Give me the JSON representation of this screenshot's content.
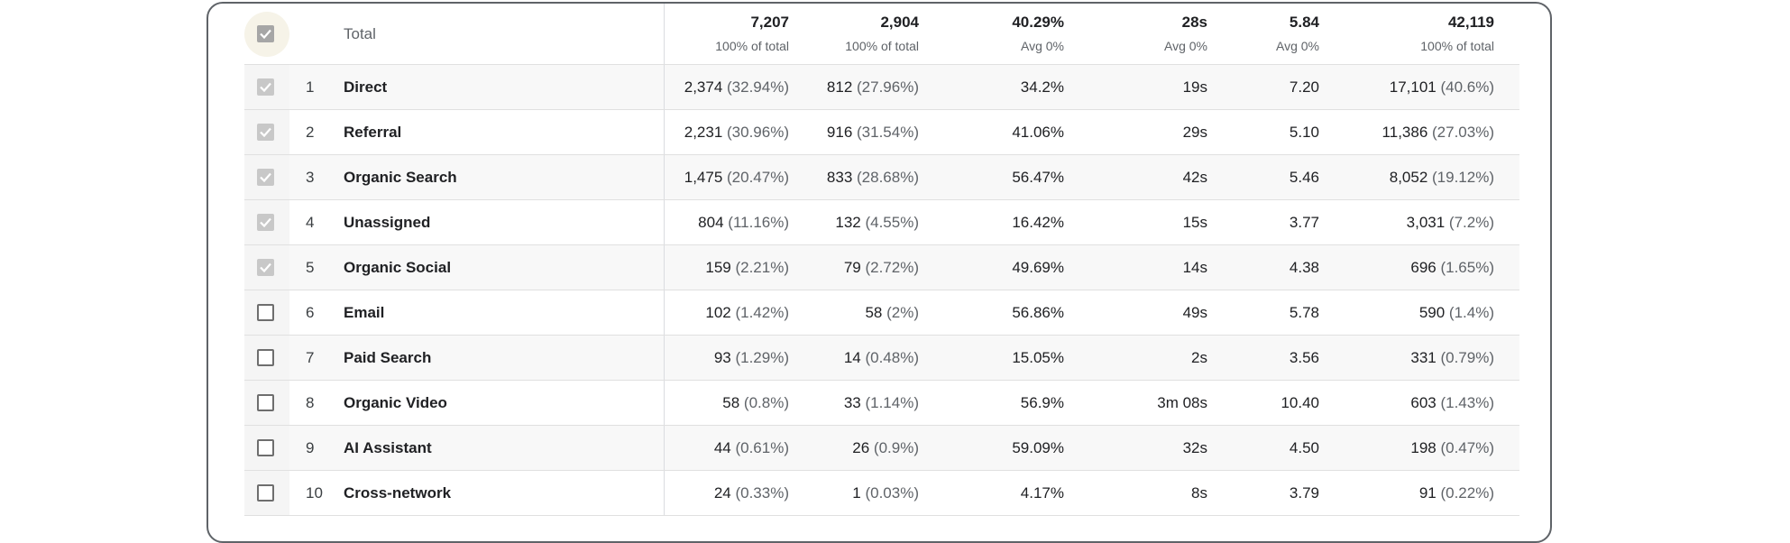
{
  "header": {
    "label": "Total",
    "cols": [
      {
        "value": "7,207",
        "sub": "100% of total"
      },
      {
        "value": "2,904",
        "sub": "100% of total"
      },
      {
        "value": "40.29%",
        "sub": "Avg 0%"
      },
      {
        "value": "28s",
        "sub": "Avg 0%"
      },
      {
        "value": "5.84",
        "sub": "Avg 0%"
      },
      {
        "value": "42,119",
        "sub": "100% of total"
      }
    ]
  },
  "rows": [
    {
      "idx": "1",
      "name": "Direct",
      "checked": true,
      "c1": "2,374",
      "c1p": "(32.94%)",
      "c2": "812",
      "c2p": "(27.96%)",
      "c3": "34.2%",
      "c4": "19s",
      "c5": "7.20",
      "c6": "17,101",
      "c6p": "(40.6%)"
    },
    {
      "idx": "2",
      "name": "Referral",
      "checked": true,
      "c1": "2,231",
      "c1p": "(30.96%)",
      "c2": "916",
      "c2p": "(31.54%)",
      "c3": "41.06%",
      "c4": "29s",
      "c5": "5.10",
      "c6": "11,386",
      "c6p": "(27.03%)"
    },
    {
      "idx": "3",
      "name": "Organic Search",
      "checked": true,
      "c1": "1,475",
      "c1p": "(20.47%)",
      "c2": "833",
      "c2p": "(28.68%)",
      "c3": "56.47%",
      "c4": "42s",
      "c5": "5.46",
      "c6": "8,052",
      "c6p": "(19.12%)"
    },
    {
      "idx": "4",
      "name": "Unassigned",
      "checked": true,
      "c1": "804",
      "c1p": "(11.16%)",
      "c2": "132",
      "c2p": "(4.55%)",
      "c3": "16.42%",
      "c4": "15s",
      "c5": "3.77",
      "c6": "3,031",
      "c6p": "(7.2%)"
    },
    {
      "idx": "5",
      "name": "Organic Social",
      "checked": true,
      "c1": "159",
      "c1p": "(2.21%)",
      "c2": "79",
      "c2p": "(2.72%)",
      "c3": "49.69%",
      "c4": "14s",
      "c5": "4.38",
      "c6": "696",
      "c6p": "(1.65%)"
    },
    {
      "idx": "6",
      "name": "Email",
      "checked": false,
      "c1": "102",
      "c1p": "(1.42%)",
      "c2": "58",
      "c2p": "(2%)",
      "c3": "56.86%",
      "c4": "49s",
      "c5": "5.78",
      "c6": "590",
      "c6p": "(1.4%)"
    },
    {
      "idx": "7",
      "name": "Paid Search",
      "checked": false,
      "c1": "93",
      "c1p": "(1.29%)",
      "c2": "14",
      "c2p": "(0.48%)",
      "c3": "15.05%",
      "c4": "2s",
      "c5": "3.56",
      "c6": "331",
      "c6p": "(0.79%)"
    },
    {
      "idx": "8",
      "name": "Organic Video",
      "checked": false,
      "c1": "58",
      "c1p": "(0.8%)",
      "c2": "33",
      "c2p": "(1.14%)",
      "c3": "56.9%",
      "c4": "3m 08s",
      "c5": "10.40",
      "c6": "603",
      "c6p": "(1.43%)"
    },
    {
      "idx": "9",
      "name": "AI Assistant",
      "checked": false,
      "c1": "44",
      "c1p": "(0.61%)",
      "c2": "26",
      "c2p": "(0.9%)",
      "c3": "59.09%",
      "c4": "32s",
      "c5": "4.50",
      "c6": "198",
      "c6p": "(0.47%)"
    },
    {
      "idx": "10",
      "name": "Cross-network",
      "checked": false,
      "c1": "24",
      "c1p": "(0.33%)",
      "c2": "1",
      "c2p": "(0.03%)",
      "c3": "4.17%",
      "c4": "8s",
      "c5": "3.79",
      "c6": "91",
      "c6p": "(0.22%)"
    }
  ]
}
